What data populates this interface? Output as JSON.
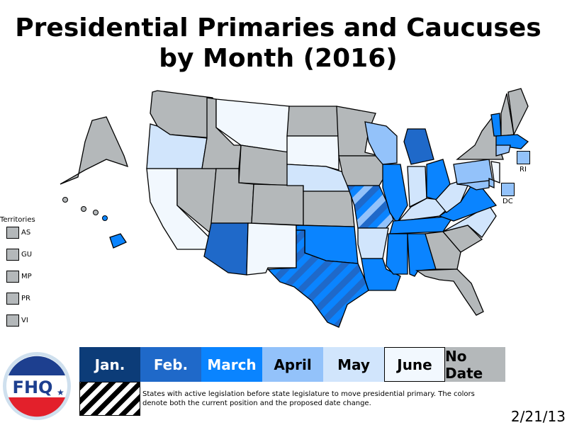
{
  "title_line1": "Presidential Primaries and Caucuses",
  "title_line2": "by Month (2016)",
  "colors": {
    "jan": "#0c3c78",
    "feb": "#1f69c9",
    "mar": "#0a84ff",
    "apr": "#93c2fa",
    "may": "#d1e5fc",
    "jun": "#f2f8fe",
    "none": "#b4b8ba"
  },
  "legend": [
    {
      "key": "jan",
      "label": "Jan.",
      "text_color": "#ffffff"
    },
    {
      "key": "feb",
      "label": "Feb.",
      "text_color": "#ffffff"
    },
    {
      "key": "mar",
      "label": "March",
      "text_color": "#ffffff"
    },
    {
      "key": "apr",
      "label": "April",
      "text_color": "#000000"
    },
    {
      "key": "may",
      "label": "May",
      "text_color": "#000000"
    },
    {
      "key": "jun",
      "label": "June",
      "text_color": "#000000"
    },
    {
      "key": "none",
      "label": "No Date",
      "text_color": "#000000"
    }
  ],
  "hatch_note": "States with active legislation before state legislature to move presidential primary. The colors denote both the current position and the proposed date change.",
  "territories": {
    "title": "Territories",
    "items": [
      "AS",
      "GU",
      "MP",
      "PR",
      "VI"
    ],
    "category": "none"
  },
  "small_states": [
    {
      "label": "RI",
      "category": "apr"
    },
    {
      "label": "DC",
      "category": "apr"
    }
  ],
  "states": {
    "WA": "none",
    "OR": "may",
    "CA": "jun",
    "NV": "none",
    "ID": "none",
    "MT": "jun",
    "WY": "none",
    "UT": "none",
    "CO": "none",
    "AZ": "feb",
    "NM": "jun",
    "ND": "none",
    "SD": "jun",
    "NE": "may",
    "KS": "none",
    "OK": "mar",
    "TX": "mar",
    "MN": "none",
    "IA": "none",
    "MO": "mar",
    "AR": "may",
    "LA": "mar",
    "WI": "apr",
    "IL": "mar",
    "MI": "feb",
    "IN": "may",
    "OH": "mar",
    "KY": "may",
    "TN": "mar",
    "MS": "mar",
    "AL": "mar",
    "GA": "none",
    "FL": "none",
    "SC": "none",
    "NC": "may",
    "VA": "mar",
    "WV": "may",
    "PA": "apr",
    "NY": "none",
    "VT": "mar",
    "NH": "none",
    "ME": "none",
    "MA": "mar",
    "CT": "apr",
    "NJ": "jun",
    "DE": "apr",
    "MD": "apr",
    "AK": "none",
    "HI": "mar"
  },
  "pending_legislation": {
    "MO": [
      "mar",
      "apr",
      "feb"
    ],
    "TX": [
      "mar",
      "feb"
    ]
  },
  "logo_text": "FHQ",
  "date": "2/21/13"
}
